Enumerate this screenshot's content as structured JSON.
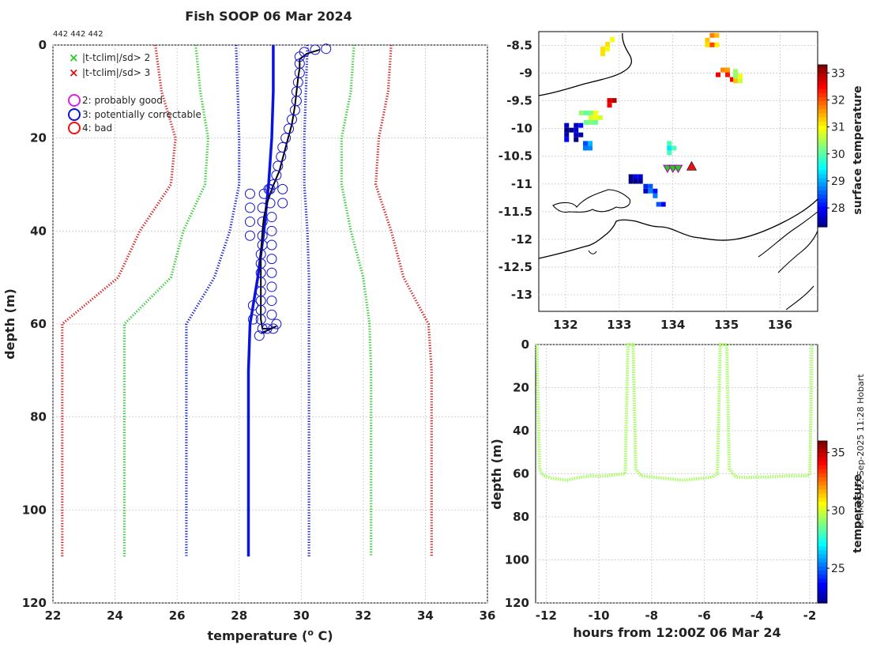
{
  "title": "Fish SOOP 06 Mar 2024",
  "platform_id": "442 442 442",
  "credit": "© IMOS 22-Sep-2025 11:28 Hobart",
  "chart_data": [
    {
      "type": "line",
      "name": "profile",
      "xlabel": "temperature (",
      "xlabel_sup": "o",
      "xlabel_tail": " C)",
      "ylabel": "depth (m)",
      "xlim": [
        22,
        36
      ],
      "ylim": [
        120,
        0
      ],
      "xticks": [
        "22",
        "24",
        "26",
        "28",
        "30",
        "32",
        "34",
        "36"
      ],
      "yticks": [
        "0",
        "20",
        "40",
        "60",
        "80",
        "100",
        "120"
      ],
      "legend": {
        "limits": [
          {
            "label": "|t-tclim|/sd> 2",
            "color": "#22cc22"
          },
          {
            "label": "|t-tclim|/sd> 3",
            "color": "#dd1111"
          }
        ],
        "flags": [
          {
            "label": "2: probably good",
            "color": "#dd22dd"
          },
          {
            "label": "3: potentially correctable",
            "color": "#1111cc"
          },
          {
            "label": "4: bad",
            "color": "#ee1111"
          }
        ]
      },
      "series": [
        {
          "name": "climatology mean",
          "color": "#0a14e0",
          "style": "solid",
          "points": [
            [
              29.1,
              0
            ],
            [
              29.1,
              10
            ],
            [
              29.05,
              20
            ],
            [
              28.95,
              30
            ],
            [
              28.8,
              40
            ],
            [
              28.6,
              50
            ],
            [
              28.35,
              60
            ],
            [
              28.3,
              70
            ],
            [
              28.3,
              80
            ],
            [
              28.3,
              90
            ],
            [
              28.3,
              100
            ],
            [
              28.3,
              110
            ]
          ]
        },
        {
          "name": "sd x2 lower",
          "color": "#22cc22",
          "style": "dotted",
          "points": [
            [
              26.6,
              0
            ],
            [
              26.75,
              10
            ],
            [
              27.0,
              20
            ],
            [
              26.9,
              30
            ],
            [
              26.2,
              40
            ],
            [
              25.8,
              50
            ],
            [
              24.3,
              60
            ],
            [
              24.3,
              70
            ],
            [
              24.3,
              80
            ],
            [
              24.3,
              90
            ],
            [
              24.3,
              100
            ],
            [
              24.3,
              110
            ]
          ]
        },
        {
          "name": "sd x2 upper",
          "color": "#22cc22",
          "style": "dotted",
          "points": [
            [
              31.7,
              0
            ],
            [
              31.6,
              10
            ],
            [
              31.3,
              20
            ],
            [
              31.3,
              30
            ],
            [
              31.6,
              40
            ],
            [
              32.0,
              50
            ],
            [
              32.2,
              60
            ],
            [
              32.25,
              70
            ],
            [
              32.25,
              80
            ],
            [
              32.25,
              90
            ],
            [
              32.25,
              100
            ],
            [
              32.25,
              110
            ]
          ]
        },
        {
          "name": "sd x3 lower",
          "color": "#dd1111",
          "style": "dotted",
          "points": [
            [
              25.3,
              0
            ],
            [
              25.5,
              10
            ],
            [
              25.95,
              20
            ],
            [
              25.8,
              30
            ],
            [
              24.8,
              40
            ],
            [
              24.1,
              50
            ],
            [
              22.3,
              60
            ],
            [
              22.3,
              70
            ],
            [
              22.3,
              80
            ],
            [
              22.3,
              90
            ],
            [
              22.3,
              100
            ],
            [
              22.3,
              110
            ]
          ]
        },
        {
          "name": "sd x3 upper",
          "color": "#dd1111",
          "style": "dotted",
          "points": [
            [
              32.9,
              0
            ],
            [
              32.8,
              10
            ],
            [
              32.5,
              20
            ],
            [
              32.4,
              30
            ],
            [
              32.9,
              40
            ],
            [
              33.3,
              50
            ],
            [
              34.1,
              60
            ],
            [
              34.2,
              70
            ],
            [
              34.2,
              80
            ],
            [
              34.2,
              90
            ],
            [
              34.2,
              100
            ],
            [
              34.2,
              110
            ]
          ]
        },
        {
          "name": "sd lower",
          "color": "#0a14e0",
          "style": "dotted",
          "points": [
            [
              27.9,
              0
            ],
            [
              27.95,
              10
            ],
            [
              28.0,
              20
            ],
            [
              28.0,
              30
            ],
            [
              27.7,
              40
            ],
            [
              27.2,
              50
            ],
            [
              26.3,
              60
            ],
            [
              26.3,
              70
            ],
            [
              26.3,
              80
            ],
            [
              26.3,
              90
            ],
            [
              26.3,
              100
            ],
            [
              26.3,
              110
            ]
          ]
        },
        {
          "name": "sd upper",
          "color": "#0a14e0",
          "style": "dotted",
          "points": [
            [
              30.2,
              0
            ],
            [
              30.15,
              10
            ],
            [
              30.1,
              20
            ],
            [
              30.1,
              30
            ],
            [
              30.2,
              40
            ],
            [
              30.25,
              50
            ],
            [
              30.25,
              60
            ],
            [
              30.25,
              70
            ],
            [
              30.25,
              80
            ],
            [
              30.25,
              90
            ],
            [
              30.25,
              100
            ],
            [
              30.25,
              110
            ]
          ]
        },
        {
          "name": "observed profile",
          "color": "#000000",
          "style": "solid",
          "points": [
            [
              30.6,
              1
            ],
            [
              30.2,
              1.8
            ],
            [
              29.95,
              3
            ],
            [
              29.95,
              5
            ],
            [
              29.9,
              7
            ],
            [
              29.85,
              10
            ],
            [
              29.8,
              13
            ],
            [
              29.7,
              17
            ],
            [
              29.5,
              22
            ],
            [
              29.3,
              27
            ],
            [
              29.05,
              31
            ],
            [
              28.9,
              34
            ],
            [
              28.8,
              37
            ],
            [
              28.75,
              40
            ],
            [
              28.7,
              45
            ],
            [
              28.7,
              50
            ],
            [
              28.7,
              55
            ],
            [
              28.7,
              59
            ],
            [
              28.75,
              61
            ],
            [
              29.0,
              61
            ],
            [
              29.2,
              60.5
            ],
            [
              28.7,
              62
            ]
          ]
        }
      ],
      "flagged_points": [
        [
          30.8,
          0.8
        ],
        [
          30.45,
          1
        ],
        [
          30.1,
          1.5
        ],
        [
          29.95,
          2.5
        ],
        [
          29.95,
          4
        ],
        [
          29.95,
          6
        ],
        [
          29.9,
          8
        ],
        [
          29.85,
          10
        ],
        [
          29.85,
          12
        ],
        [
          29.8,
          14
        ],
        [
          29.7,
          16
        ],
        [
          29.6,
          18
        ],
        [
          29.5,
          20
        ],
        [
          29.4,
          22
        ],
        [
          29.35,
          24
        ],
        [
          29.25,
          26
        ],
        [
          29.2,
          28
        ],
        [
          29.1,
          30
        ],
        [
          28.95,
          31
        ],
        [
          28.8,
          32
        ],
        [
          28.75,
          35
        ],
        [
          28.75,
          38
        ],
        [
          28.75,
          41
        ],
        [
          28.75,
          43
        ],
        [
          28.7,
          45
        ],
        [
          28.7,
          47
        ],
        [
          28.7,
          49
        ],
        [
          28.7,
          51
        ],
        [
          28.7,
          53
        ],
        [
          28.7,
          55
        ],
        [
          28.7,
          57
        ],
        [
          28.7,
          59
        ],
        [
          28.75,
          61
        ],
        [
          28.9,
          61
        ],
        [
          29.1,
          61
        ],
        [
          29.2,
          60
        ],
        [
          28.65,
          62.5
        ],
        [
          29.0,
          31
        ],
        [
          29.4,
          31
        ],
        [
          29.0,
          34
        ],
        [
          29.4,
          34
        ],
        [
          29.05,
          37
        ],
        [
          29.05,
          40
        ],
        [
          29.05,
          43
        ],
        [
          29.05,
          46
        ],
        [
          29.05,
          49
        ],
        [
          29.05,
          52
        ],
        [
          29.05,
          55
        ],
        [
          29.05,
          58
        ],
        [
          28.35,
          32
        ],
        [
          28.35,
          35
        ],
        [
          28.35,
          38
        ],
        [
          28.35,
          41
        ],
        [
          28.45,
          56
        ],
        [
          28.45,
          59
        ]
      ]
    },
    {
      "type": "heatmap",
      "name": "map",
      "xlim": [
        131.5,
        136.7
      ],
      "ylim": [
        -13.3,
        -8.25
      ],
      "xticks": [
        "132",
        "133",
        "134",
        "135",
        "136"
      ],
      "yticks": [
        "-8.5",
        "-9",
        "-9.5",
        "-10",
        "-10.5",
        "-11",
        "-11.5",
        "-12",
        "-12.5",
        "-13"
      ],
      "colorbar": {
        "label": "surface temperature",
        "min": 27.3,
        "max": 33.3,
        "ticks": [
          "28",
          "29",
          "30",
          "31",
          "32",
          "33"
        ]
      },
      "observation_markers": [
        [
          133.9,
          -10.72
        ],
        [
          134.0,
          -10.72
        ],
        [
          134.1,
          -10.72
        ]
      ],
      "latest_marker": [
        134.35,
        -10.68
      ],
      "sst_clusters": [
        {
          "x": 132.15,
          "y": -10.05,
          "w": 0.35,
          "h": 0.3,
          "value": 27.6
        },
        {
          "x": 132.45,
          "y": -9.8,
          "w": 0.4,
          "h": 0.25,
          "value": 30.5
        },
        {
          "x": 132.85,
          "y": -9.5,
          "w": 0.15,
          "h": 0.1,
          "value": 33.1
        },
        {
          "x": 132.8,
          "y": -8.5,
          "w": 0.3,
          "h": 0.3,
          "value": 31.3
        },
        {
          "x": 134.7,
          "y": -8.4,
          "w": 0.2,
          "h": 0.25,
          "value": 31.6
        },
        {
          "x": 134.95,
          "y": -9.0,
          "w": 0.3,
          "h": 0.2,
          "value": 32.2
        },
        {
          "x": 135.2,
          "y": -9.05,
          "w": 0.15,
          "h": 0.25,
          "value": 31.0
        },
        {
          "x": 133.3,
          "y": -10.9,
          "w": 0.25,
          "h": 0.15,
          "value": 27.6
        },
        {
          "x": 133.55,
          "y": -11.1,
          "w": 0.2,
          "h": 0.2,
          "value": 28.3
        },
        {
          "x": 132.4,
          "y": -10.3,
          "w": 0.15,
          "h": 0.15,
          "value": 29.0
        },
        {
          "x": 133.95,
          "y": -10.35,
          "w": 0.12,
          "h": 0.25,
          "value": 29.5
        },
        {
          "x": 133.75,
          "y": -11.4,
          "w": 0.12,
          "h": 0.15,
          "value": 28.0
        },
        {
          "x": 134.0,
          "y": -10.72,
          "w": 0.35,
          "h": 0.08,
          "value": 29.8
        }
      ]
    },
    {
      "type": "line",
      "name": "depth_time",
      "xlabel": "hours from 12:00Z 06 Mar 24",
      "ylabel": "depth (m)",
      "xlim": [
        -12.4,
        -1.7
      ],
      "ylim": [
        120,
        0
      ],
      "xticks": [
        "-12",
        "-10",
        "-8",
        "-6",
        "-4",
        "-2"
      ],
      "yticks": [
        "0",
        "20",
        "40",
        "60",
        "80",
        "100",
        "120"
      ],
      "colorbar": {
        "label": "temperature",
        "min": 22.0,
        "max": 36.0,
        "ticks": [
          "25",
          "30",
          "35"
        ]
      },
      "series_color_value": 29.5,
      "points": [
        [
          -12.35,
          0
        ],
        [
          -12.3,
          30
        ],
        [
          -12.25,
          58
        ],
        [
          -12.1,
          61
        ],
        [
          -11.8,
          62
        ],
        [
          -11.5,
          62.5
        ],
        [
          -11.2,
          63
        ],
        [
          -10.9,
          62
        ],
        [
          -10.6,
          61.5
        ],
        [
          -10.3,
          61
        ],
        [
          -10.0,
          61.2
        ],
        [
          -9.7,
          61
        ],
        [
          -9.4,
          60.5
        ],
        [
          -9.0,
          60
        ],
        [
          -8.95,
          30
        ],
        [
          -8.9,
          0
        ],
        [
          -8.7,
          0
        ],
        [
          -8.65,
          30
        ],
        [
          -8.6,
          58
        ],
        [
          -8.4,
          61
        ],
        [
          -8.0,
          61.5
        ],
        [
          -7.6,
          62
        ],
        [
          -7.2,
          62.5
        ],
        [
          -6.8,
          63
        ],
        [
          -6.4,
          62.5
        ],
        [
          -6.0,
          62
        ],
        [
          -5.7,
          61.5
        ],
        [
          -5.5,
          60
        ],
        [
          -5.45,
          30
        ],
        [
          -5.4,
          0
        ],
        [
          -5.15,
          0
        ],
        [
          -5.1,
          30
        ],
        [
          -5.05,
          58
        ],
        [
          -4.8,
          61.5
        ],
        [
          -4.4,
          61.8
        ],
        [
          -4.0,
          61.5
        ],
        [
          -3.6,
          61.5
        ],
        [
          -3.2,
          61.2
        ],
        [
          -2.8,
          61
        ],
        [
          -2.4,
          61
        ],
        [
          -2.1,
          61
        ],
        [
          -2.0,
          60.5
        ],
        [
          -1.95,
          30
        ],
        [
          -1.92,
          0
        ]
      ]
    }
  ]
}
